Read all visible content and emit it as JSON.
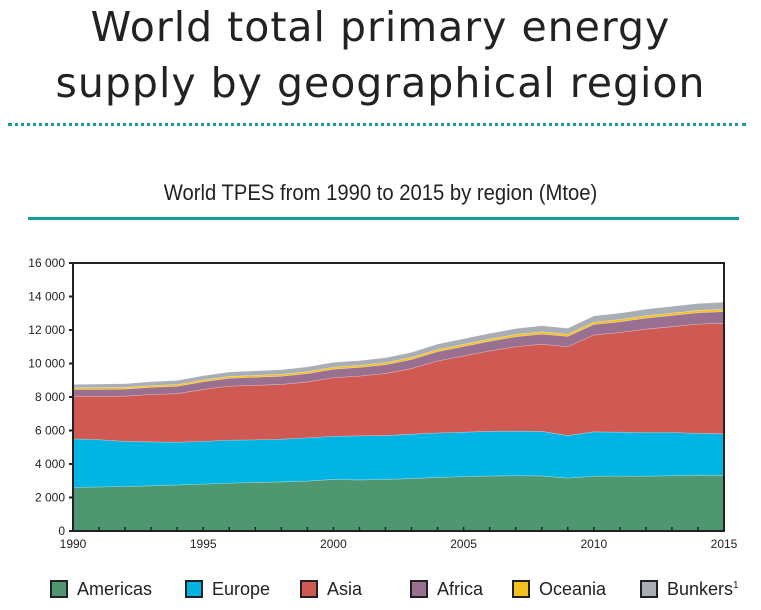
{
  "header": {
    "title_line1": "World total primary energy",
    "title_line2": "supply by geographical region"
  },
  "chart_data": {
    "type": "area",
    "stacked": true,
    "title": "World TPES from 1990 to 2015 by region (Mtoe)",
    "xlabel": "",
    "ylabel": "",
    "ylim": [
      0,
      16000
    ],
    "xlim": [
      1990,
      2015
    ],
    "yticks": [
      "0",
      "2 000",
      "4 000",
      "6 000",
      "8 000",
      "10 000",
      "12 000",
      "14 000",
      "16 000"
    ],
    "ytick_values": [
      0,
      2000,
      4000,
      6000,
      8000,
      10000,
      12000,
      14000,
      16000
    ],
    "xticks": [
      "1990",
      "1995",
      "2000",
      "2005",
      "2010",
      "2015"
    ],
    "xtick_values": [
      1990,
      1995,
      2000,
      2005,
      2010,
      2015
    ],
    "legend_position": "bottom",
    "x": [
      1990,
      1991,
      1992,
      1993,
      1994,
      1995,
      1996,
      1997,
      1998,
      1999,
      2000,
      2001,
      2002,
      2003,
      2004,
      2005,
      2006,
      2007,
      2008,
      2009,
      2010,
      2011,
      2012,
      2013,
      2014,
      2015
    ],
    "series": [
      {
        "name": "Americas",
        "color": "#4e9770",
        "values": [
          2600,
          2630,
          2660,
          2700,
          2750,
          2800,
          2850,
          2900,
          2930,
          2980,
          3080,
          3050,
          3080,
          3130,
          3200,
          3250,
          3280,
          3300,
          3290,
          3160,
          3270,
          3280,
          3270,
          3300,
          3330,
          3320
        ]
      },
      {
        "name": "Europe",
        "color": "#00b4e4",
        "values": [
          2900,
          2820,
          2690,
          2620,
          2550,
          2550,
          2570,
          2540,
          2550,
          2580,
          2570,
          2630,
          2620,
          2650,
          2650,
          2650,
          2670,
          2660,
          2660,
          2540,
          2650,
          2620,
          2610,
          2580,
          2500,
          2480
        ]
      },
      {
        "name": "Asia",
        "color": "#cf5a53",
        "values": [
          2550,
          2600,
          2700,
          2830,
          2900,
          3100,
          3230,
          3260,
          3270,
          3340,
          3500,
          3570,
          3700,
          3920,
          4300,
          4550,
          4800,
          5040,
          5200,
          5300,
          5780,
          5950,
          6170,
          6320,
          6520,
          6600
        ]
      },
      {
        "name": "Africa",
        "color": "#9a7090",
        "values": [
          400,
          410,
          420,
          430,
          440,
          460,
          470,
          480,
          490,
          500,
          510,
          520,
          530,
          540,
          560,
          570,
          580,
          600,
          610,
          620,
          630,
          640,
          660,
          670,
          680,
          700
        ]
      },
      {
        "name": "Oceania",
        "color": "#f4c020",
        "values": [
          100,
          100,
          102,
          104,
          106,
          108,
          110,
          112,
          114,
          116,
          118,
          120,
          122,
          124,
          126,
          128,
          130,
          132,
          134,
          134,
          136,
          136,
          138,
          138,
          140,
          140
        ]
      },
      {
        "name": "Bunkers",
        "superscript": "1",
        "color": "#a8adb6",
        "values": [
          200,
          210,
          220,
          230,
          240,
          250,
          260,
          270,
          270,
          280,
          290,
          280,
          290,
          300,
          320,
          330,
          340,
          350,
          360,
          350,
          370,
          380,
          390,
          400,
          410,
          420
        ]
      }
    ]
  }
}
